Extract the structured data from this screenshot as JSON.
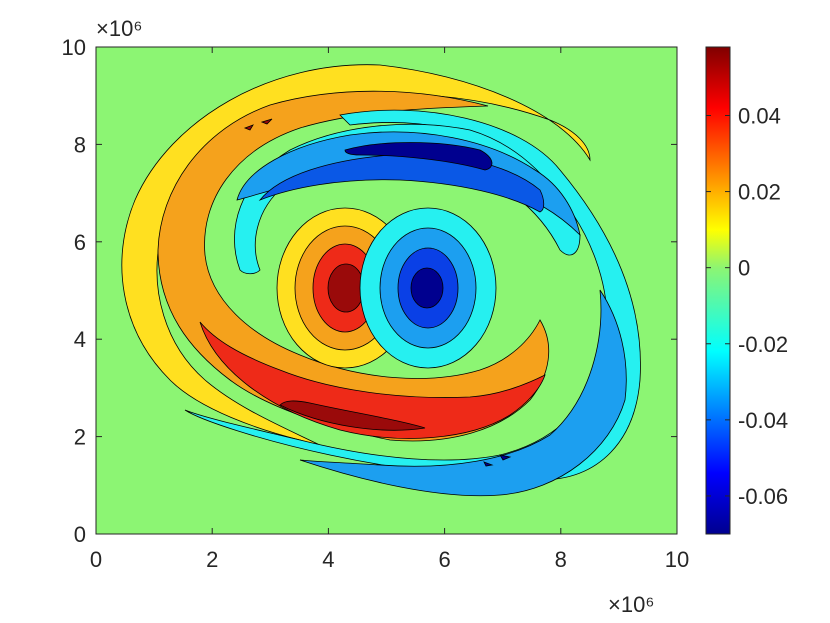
{
  "chart_data": {
    "type": "contour",
    "title": "",
    "xlabel": "",
    "ylabel": "",
    "xlim": [
      0,
      10
    ],
    "ylim": [
      0,
      10
    ],
    "x_multiplier": "×10⁶",
    "y_multiplier": "×10⁶",
    "x_ticks": [
      0,
      2,
      4,
      6,
      8,
      10
    ],
    "y_ticks": [
      0,
      2,
      4,
      6,
      8,
      10
    ],
    "x_tick_labels": [
      "0",
      "2",
      "4",
      "6",
      "8",
      "10"
    ],
    "y_tick_labels": [
      "0",
      "2",
      "4",
      "6",
      "8",
      "10"
    ],
    "colorbar": {
      "colormap": "jet",
      "clim": [
        -0.07,
        0.058
      ],
      "ticks": [
        -0.06,
        -0.04,
        -0.02,
        0,
        0.02,
        0.04
      ],
      "tick_labels": [
        "-0.06",
        "-0.04",
        "-0.02",
        "0",
        "0.02",
        "0.04"
      ]
    },
    "background_color": "#8cf573",
    "features": [
      {
        "kind": "monopole-max",
        "center": [
          4.3,
          5.0
        ],
        "peak": 0.058
      },
      {
        "kind": "monopole-min",
        "center": [
          5.7,
          5.0
        ],
        "peak": -0.07
      },
      {
        "kind": "spiral-arm-positive-outer",
        "color": "#ffe020"
      },
      {
        "kind": "spiral-arm-positive-inner",
        "color": "#f5a21c"
      },
      {
        "kind": "spiral-arm-negative-outer",
        "color": "#26f0f0"
      },
      {
        "kind": "spiral-arm-negative-inner",
        "color": "#0a58e6"
      }
    ]
  }
}
